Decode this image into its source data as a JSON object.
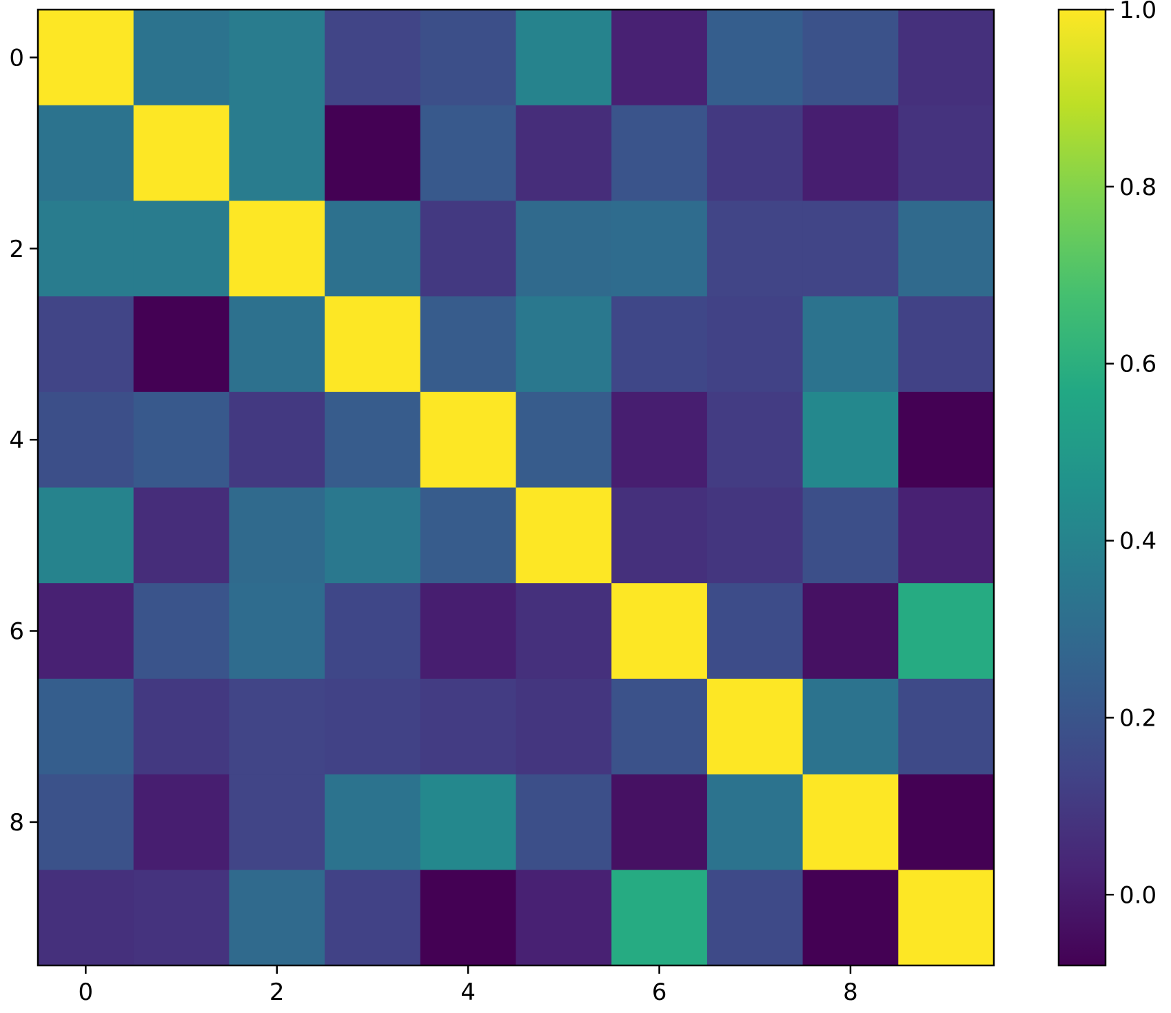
{
  "chart_data": {
    "type": "heatmap",
    "title": "",
    "xlabel": "",
    "ylabel": "",
    "rows": 10,
    "cols": 10,
    "x_ticks": [
      "0",
      "2",
      "4",
      "6",
      "8"
    ],
    "y_ticks": [
      "0",
      "2",
      "4",
      "6",
      "8"
    ],
    "x_tick_values": [
      0,
      2,
      4,
      6,
      8
    ],
    "y_tick_values": [
      0,
      2,
      4,
      6,
      8
    ],
    "colormap": "viridis",
    "colorbar": {
      "vmin": -0.08,
      "vmax": 1.0,
      "ticks": [
        0.0,
        0.2,
        0.4,
        0.6,
        0.8,
        1.0
      ],
      "tick_labels": [
        "0.0",
        "0.2",
        "0.4",
        "0.6",
        "0.8",
        "1.0"
      ]
    },
    "values": [
      [
        1.0,
        0.33,
        0.37,
        0.14,
        0.18,
        0.4,
        0.02,
        0.24,
        0.19,
        0.07
      ],
      [
        0.33,
        1.0,
        0.37,
        -0.08,
        0.22,
        0.06,
        0.2,
        0.1,
        0.01,
        0.08
      ],
      [
        0.37,
        0.37,
        1.0,
        0.32,
        0.1,
        0.29,
        0.3,
        0.14,
        0.14,
        0.29
      ],
      [
        0.14,
        -0.08,
        0.32,
        1.0,
        0.23,
        0.35,
        0.15,
        0.13,
        0.33,
        0.13
      ],
      [
        0.18,
        0.22,
        0.1,
        0.23,
        1.0,
        0.23,
        0.01,
        0.11,
        0.42,
        -0.08
      ],
      [
        0.4,
        0.06,
        0.29,
        0.35,
        0.23,
        1.0,
        0.07,
        0.09,
        0.18,
        0.02
      ],
      [
        0.02,
        0.2,
        0.3,
        0.15,
        0.01,
        0.07,
        1.0,
        0.17,
        -0.03,
        0.58
      ],
      [
        0.24,
        0.1,
        0.14,
        0.13,
        0.11,
        0.09,
        0.19,
        1.0,
        0.33,
        0.16
      ],
      [
        0.19,
        0.01,
        0.14,
        0.33,
        0.42,
        0.18,
        -0.03,
        0.33,
        1.0,
        -0.08
      ],
      [
        0.07,
        0.08,
        0.29,
        0.13,
        -0.08,
        0.02,
        0.58,
        0.16,
        -0.08,
        1.0
      ]
    ]
  }
}
